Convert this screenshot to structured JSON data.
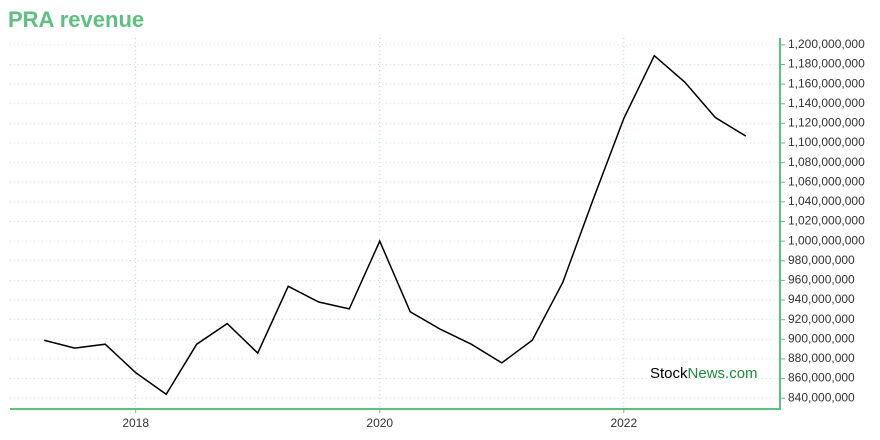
{
  "chart_data": {
    "type": "line",
    "title": "PRA revenue",
    "watermark": {
      "first": "Stock",
      "second": "News.com"
    },
    "x": [
      2017.25,
      2017.5,
      2017.75,
      2018.0,
      2018.25,
      2018.5,
      2018.75,
      2019.0,
      2019.25,
      2019.5,
      2019.75,
      2020.0,
      2020.25,
      2020.5,
      2020.75,
      2021.0,
      2021.25,
      2021.5,
      2021.75,
      2022.0,
      2022.25,
      2022.5,
      2022.75,
      2023.0
    ],
    "series": [
      {
        "color": "#000000",
        "values": [
          899000000,
          891000000,
          895000000,
          866000000,
          844000000,
          895000000,
          916000000,
          886000000,
          954000000,
          938000000,
          931000000,
          1000000000,
          928000000,
          910000000,
          895000000,
          876000000,
          899000000,
          958000000,
          1043000000,
          1125000000,
          1189000000,
          1162000000,
          1126000000,
          1107000000
        ]
      }
    ],
    "xlim": [
      2016.97,
      2023.28
    ],
    "xticks": [
      2018,
      2020,
      2022
    ],
    "ylim": [
      830000000,
      1207000000
    ],
    "yticks": [
      {
        "value": 840000000,
        "label": "840,000,000"
      },
      {
        "value": 860000000,
        "label": "860,000,000"
      },
      {
        "value": 880000000,
        "label": "880,000,000"
      },
      {
        "value": 900000000,
        "label": "900,000,000"
      },
      {
        "value": 920000000,
        "label": "920,000,000"
      },
      {
        "value": 940000000,
        "label": "940,000,000"
      },
      {
        "value": 960000000,
        "label": "960,000,000"
      },
      {
        "value": 980000000,
        "label": "980,000,000"
      },
      {
        "value": 1000000000,
        "label": "1,000,000,000"
      },
      {
        "value": 1020000000,
        "label": "1,020,000,000"
      },
      {
        "value": 1040000000,
        "label": "1,040,000,000"
      },
      {
        "value": 1060000000,
        "label": "1,060,000,000"
      },
      {
        "value": 1080000000,
        "label": "1,080,000,000"
      },
      {
        "value": 1100000000,
        "label": "1,100,000,000"
      },
      {
        "value": 1120000000,
        "label": "1,120,000,000"
      },
      {
        "value": 1140000000,
        "label": "1,140,000,000"
      },
      {
        "value": 1160000000,
        "label": "1,160,000,000"
      },
      {
        "value": 1180000000,
        "label": "1,180,000,000"
      },
      {
        "value": 1200000000,
        "label": "1,200,000,000"
      }
    ],
    "grid": true,
    "axis_color": "#5dbf80"
  }
}
